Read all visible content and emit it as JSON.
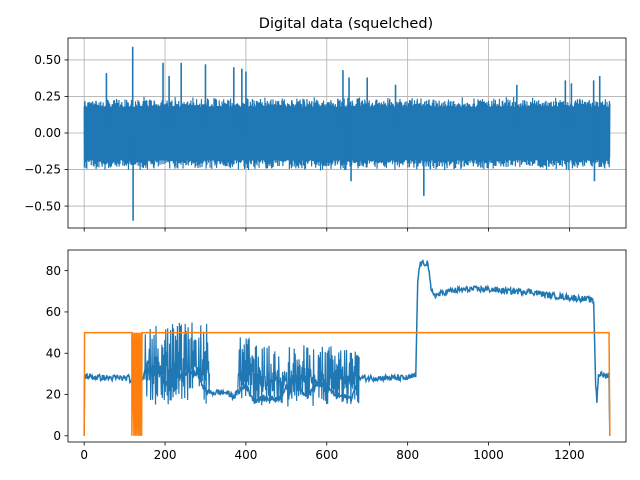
{
  "chart_data": [
    {
      "type": "line",
      "title": "Digital data (squelched)",
      "xlabel": "",
      "ylabel": "",
      "xlim": [
        -40,
        1340
      ],
      "ylim": [
        -0.65,
        0.65
      ],
      "grid": true,
      "x_ticks": [
        0,
        200,
        400,
        600,
        800,
        1000,
        1200
      ],
      "x_tick_labels_visible": false,
      "y_ticks": [
        -0.5,
        -0.25,
        0.0,
        0.25,
        0.5
      ],
      "y_tick_labels": [
        "−0.50",
        "−0.25",
        "0.00",
        "0.25",
        "0.50"
      ],
      "series": [
        {
          "color": "#1f77b4",
          "style": "dense-noise",
          "x_range": [
            0,
            1300
          ],
          "typical_envelope": [
            -0.26,
            0.25
          ],
          "spikes": [
            {
              "x": 55,
              "y": 0.41
            },
            {
              "x": 120,
              "y": 0.59
            },
            {
              "x": 121,
              "y": -0.6
            },
            {
              "x": 195,
              "y": 0.48
            },
            {
              "x": 210,
              "y": 0.39
            },
            {
              "x": 240,
              "y": 0.48
            },
            {
              "x": 300,
              "y": 0.47
            },
            {
              "x": 370,
              "y": 0.45
            },
            {
              "x": 390,
              "y": 0.44
            },
            {
              "x": 400,
              "y": 0.42
            },
            {
              "x": 640,
              "y": 0.43
            },
            {
              "x": 655,
              "y": 0.38
            },
            {
              "x": 700,
              "y": 0.38
            },
            {
              "x": 770,
              "y": 0.33
            },
            {
              "x": 840,
              "y": -0.43
            },
            {
              "x": 1070,
              "y": 0.33
            },
            {
              "x": 1190,
              "y": 0.36
            },
            {
              "x": 1205,
              "y": 0.34
            },
            {
              "x": 1260,
              "y": 0.36
            },
            {
              "x": 1275,
              "y": 0.39
            },
            {
              "x": 1262,
              "y": -0.33
            },
            {
              "x": 660,
              "y": -0.33
            }
          ]
        }
      ]
    },
    {
      "type": "line",
      "title": "",
      "xlabel": "",
      "ylabel": "",
      "xlim": [
        -40,
        1340
      ],
      "ylim": [
        -3,
        90
      ],
      "grid": false,
      "x_ticks": [
        0,
        200,
        400,
        600,
        800,
        1000,
        1200
      ],
      "x_tick_labels": [
        "0",
        "200",
        "400",
        "600",
        "800",
        "1000",
        "1200"
      ],
      "y_ticks": [
        0,
        20,
        40,
        60,
        80
      ],
      "y_tick_labels": [
        "0",
        "20",
        "40",
        "60",
        "80"
      ],
      "series": [
        {
          "color": "#1f77b4",
          "style": "noisy-line",
          "points": [
            [
              0,
              0
            ],
            [
              1,
              29
            ],
            [
              20,
              28.5
            ],
            [
              60,
              28
            ],
            [
              110,
              28
            ],
            [
              118,
              26
            ],
            [
              125,
              30
            ],
            [
              135,
              29
            ],
            [
              145,
              28
            ],
            [
              150,
              33
            ],
            [
              160,
              36
            ],
            [
              170,
              30
            ],
            [
              180,
              34
            ],
            [
              200,
              25
            ],
            [
              220,
              32
            ],
            [
              240,
              29
            ],
            [
              260,
              31
            ],
            [
              280,
              30
            ],
            [
              300,
              22
            ],
            [
              310,
              21
            ],
            [
              330,
              21
            ],
            [
              350,
              21
            ],
            [
              370,
              19
            ],
            [
              380,
              21
            ],
            [
              390,
              23
            ],
            [
              400,
              24
            ],
            [
              420,
              17
            ],
            [
              440,
              18
            ],
            [
              460,
              18
            ],
            [
              480,
              18
            ],
            [
              500,
              23
            ],
            [
              520,
              30
            ],
            [
              540,
              21
            ],
            [
              560,
              21
            ],
            [
              580,
              26
            ],
            [
              600,
              23
            ],
            [
              620,
              20
            ],
            [
              640,
              19
            ],
            [
              660,
              18
            ],
            [
              675,
              25
            ],
            [
              680,
              28
            ],
            [
              700,
              28
            ],
            [
              740,
              28
            ],
            [
              780,
              28
            ],
            [
              800,
              28
            ],
            [
              820,
              29
            ],
            [
              825,
              75
            ],
            [
              830,
              83
            ],
            [
              850,
              84
            ],
            [
              858,
              70
            ],
            [
              870,
              68
            ],
            [
              900,
              70
            ],
            [
              950,
              71
            ],
            [
              1000,
              71
            ],
            [
              1050,
              70
            ],
            [
              1100,
              70
            ],
            [
              1150,
              68
            ],
            [
              1200,
              67
            ],
            [
              1250,
              66
            ],
            [
              1260,
              65
            ],
            [
              1265,
              25
            ],
            [
              1268,
              17
            ],
            [
              1272,
              30
            ],
            [
              1290,
              29
            ],
            [
              1298,
              30
            ],
            [
              1300,
              0
            ]
          ],
          "noise_bands": [
            {
              "x0": 150,
              "x1": 310,
              "ymin": 15,
              "ymax": 55
            },
            {
              "x0": 380,
              "x1": 420,
              "ymin": 17,
              "ymax": 48
            },
            {
              "x0": 420,
              "x1": 680,
              "ymin": 14,
              "ymax": 44
            }
          ]
        },
        {
          "color": "#ff7f0e",
          "style": "step",
          "points": [
            [
              0,
              0
            ],
            [
              1,
              50
            ],
            [
              118,
              50
            ],
            [
              118,
              0
            ],
            [
              121,
              50
            ],
            [
              123,
              0
            ],
            [
              125,
              50
            ],
            [
              127,
              0
            ],
            [
              129,
              50
            ],
            [
              131,
              0
            ],
            [
              133,
              50
            ],
            [
              135,
              0
            ],
            [
              137,
              50
            ],
            [
              139,
              0
            ],
            [
              141,
              50
            ],
            [
              142,
              0
            ],
            [
              143,
              50
            ],
            [
              1298,
              50
            ],
            [
              1300,
              0
            ]
          ]
        }
      ]
    }
  ]
}
